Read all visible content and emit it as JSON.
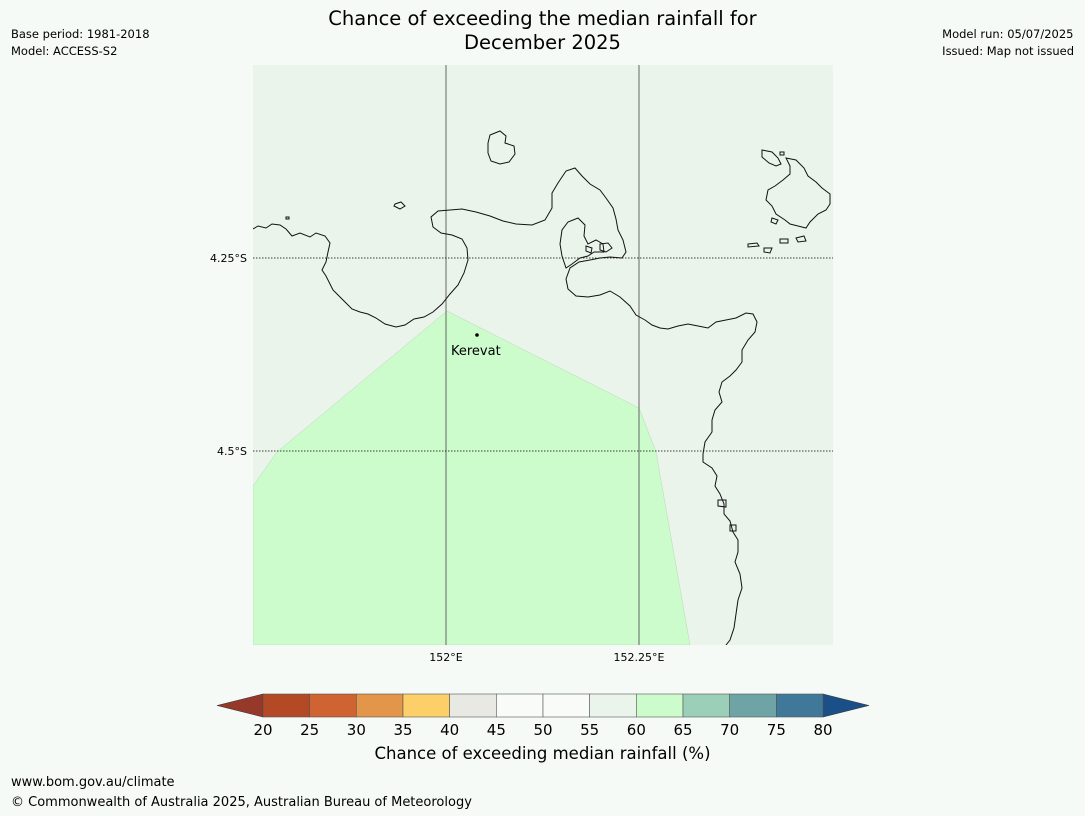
{
  "title": {
    "line1": "Chance of exceeding the median rainfall for",
    "line2": "December 2025"
  },
  "meta_left": {
    "base_period": "Base period: 1981-2018",
    "model": "Model: ACCESS-S2"
  },
  "meta_right": {
    "model_run": "Model run: 05/07/2025",
    "issued": "Issued: Map not issued"
  },
  "map": {
    "place_label": "Kerevat",
    "lat_labels": [
      "4.25°S",
      "4.5°S"
    ],
    "lon_labels": [
      "152°E",
      "152.25°E"
    ],
    "background_color": "#eaf4ea",
    "highlight_color": "#ccfccc",
    "highlight_category": "60-65"
  },
  "colorbar": {
    "label": "Chance of exceeding median rainfall (%)",
    "ticks": [
      "20",
      "25",
      "30",
      "35",
      "40",
      "45",
      "50",
      "55",
      "60",
      "65",
      "70",
      "75",
      "80"
    ],
    "colors": [
      "#b34a25",
      "#d06332",
      "#e3964a",
      "#fccf69",
      "#e9e9e3",
      "#f8fbf8",
      "#f8fbf8",
      "#eaf4ea",
      "#ccfccc",
      "#9ccfb7",
      "#6ea4a6",
      "#3f7899"
    ],
    "under_color": "#96392a",
    "over_color": "#1b4f88"
  },
  "footer": {
    "url": "www.bom.gov.au/climate",
    "copyright": "© Commonwealth of Australia 2025, Australian Bureau of Meteorology"
  }
}
